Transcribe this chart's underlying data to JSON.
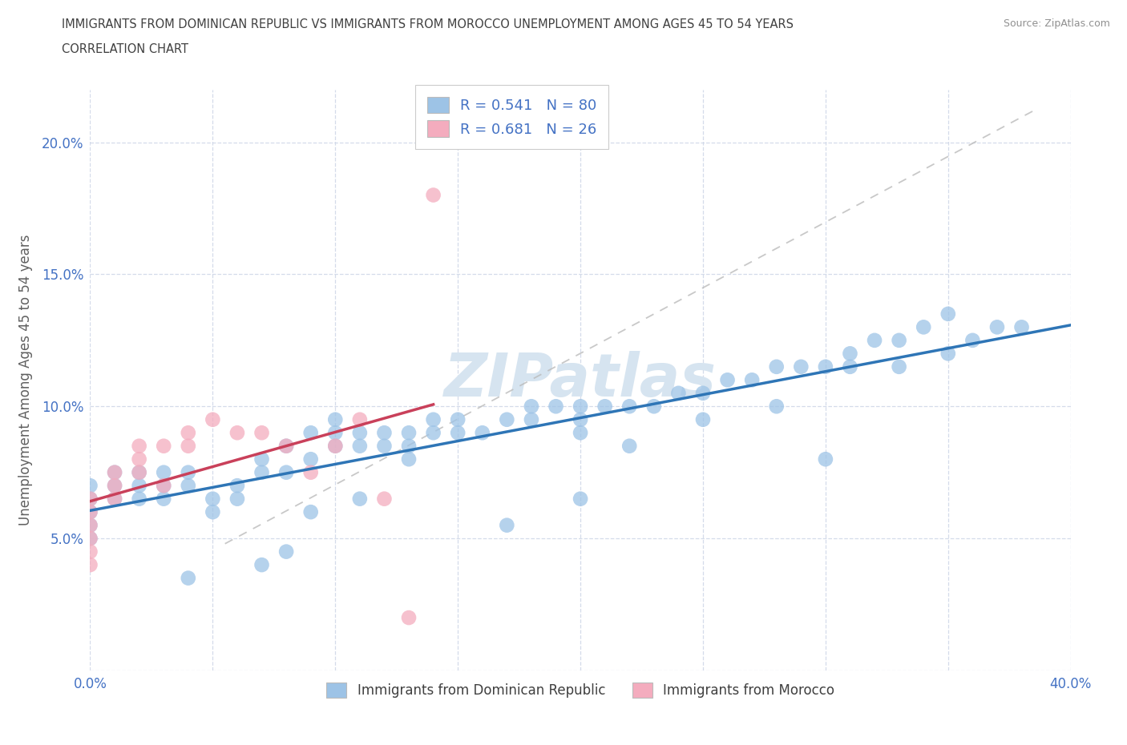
{
  "title_line1": "IMMIGRANTS FROM DOMINICAN REPUBLIC VS IMMIGRANTS FROM MOROCCO UNEMPLOYMENT AMONG AGES 45 TO 54 YEARS",
  "title_line2": "CORRELATION CHART",
  "source_text": "Source: ZipAtlas.com",
  "ylabel": "Unemployment Among Ages 45 to 54 years",
  "xlim": [
    0.0,
    0.4
  ],
  "ylim": [
    0.0,
    0.22
  ],
  "xticks": [
    0.0,
    0.05,
    0.1,
    0.15,
    0.2,
    0.25,
    0.3,
    0.35,
    0.4
  ],
  "xticklabels": [
    "0.0%",
    "",
    "",
    "",
    "",
    "",
    "",
    "",
    "40.0%"
  ],
  "yticks": [
    0.0,
    0.05,
    0.1,
    0.15,
    0.2
  ],
  "yticklabels": [
    "",
    "5.0%",
    "10.0%",
    "15.0%",
    "20.0%"
  ],
  "blue_color": "#9DC3E6",
  "pink_color": "#F4ACBE",
  "blue_line_color": "#2E75B6",
  "pink_line_color": "#C9405A",
  "watermark_color": "#D6E4F0",
  "R_blue": 0.541,
  "N_blue": 80,
  "R_pink": 0.681,
  "N_pink": 26,
  "blue_scatter_x": [
    0.0,
    0.0,
    0.0,
    0.0,
    0.0,
    0.01,
    0.01,
    0.01,
    0.02,
    0.02,
    0.02,
    0.03,
    0.03,
    0.03,
    0.04,
    0.04,
    0.05,
    0.05,
    0.06,
    0.06,
    0.07,
    0.07,
    0.08,
    0.08,
    0.09,
    0.09,
    0.1,
    0.1,
    0.1,
    0.11,
    0.11,
    0.12,
    0.12,
    0.13,
    0.13,
    0.14,
    0.14,
    0.15,
    0.15,
    0.16,
    0.17,
    0.18,
    0.18,
    0.19,
    0.2,
    0.2,
    0.2,
    0.21,
    0.22,
    0.22,
    0.23,
    0.24,
    0.25,
    0.25,
    0.26,
    0.27,
    0.28,
    0.29,
    0.3,
    0.3,
    0.31,
    0.32,
    0.33,
    0.33,
    0.34,
    0.35,
    0.35,
    0.36,
    0.37,
    0.38,
    0.31,
    0.28,
    0.13,
    0.08,
    0.2,
    0.17,
    0.07,
    0.04,
    0.11,
    0.09
  ],
  "blue_scatter_y": [
    0.065,
    0.07,
    0.06,
    0.055,
    0.05,
    0.065,
    0.07,
    0.075,
    0.065,
    0.07,
    0.075,
    0.07,
    0.075,
    0.065,
    0.07,
    0.075,
    0.06,
    0.065,
    0.065,
    0.07,
    0.075,
    0.08,
    0.075,
    0.085,
    0.08,
    0.09,
    0.085,
    0.09,
    0.095,
    0.085,
    0.09,
    0.085,
    0.09,
    0.085,
    0.09,
    0.09,
    0.095,
    0.09,
    0.095,
    0.09,
    0.095,
    0.095,
    0.1,
    0.1,
    0.09,
    0.095,
    0.1,
    0.1,
    0.1,
    0.085,
    0.1,
    0.105,
    0.105,
    0.095,
    0.11,
    0.11,
    0.115,
    0.115,
    0.115,
    0.08,
    0.12,
    0.125,
    0.125,
    0.115,
    0.13,
    0.135,
    0.12,
    0.125,
    0.13,
    0.13,
    0.115,
    0.1,
    0.08,
    0.045,
    0.065,
    0.055,
    0.04,
    0.035,
    0.065,
    0.06
  ],
  "pink_scatter_x": [
    0.0,
    0.0,
    0.0,
    0.0,
    0.0,
    0.0,
    0.01,
    0.01,
    0.01,
    0.02,
    0.02,
    0.02,
    0.03,
    0.03,
    0.04,
    0.04,
    0.05,
    0.06,
    0.07,
    0.08,
    0.09,
    0.1,
    0.11,
    0.12,
    0.13,
    0.14
  ],
  "pink_scatter_y": [
    0.055,
    0.06,
    0.065,
    0.05,
    0.045,
    0.04,
    0.065,
    0.07,
    0.075,
    0.075,
    0.08,
    0.085,
    0.085,
    0.07,
    0.09,
    0.085,
    0.095,
    0.09,
    0.09,
    0.085,
    0.075,
    0.085,
    0.095,
    0.065,
    0.02,
    0.18
  ],
  "legend_label_blue": "Immigrants from Dominican Republic",
  "legend_label_pink": "Immigrants from Morocco",
  "background_color": "#FFFFFF",
  "title_color": "#404040",
  "label_color": "#4472C4",
  "axis_label_color": "#606060",
  "grid_color": "#D0D8E8",
  "source_color": "#909090"
}
